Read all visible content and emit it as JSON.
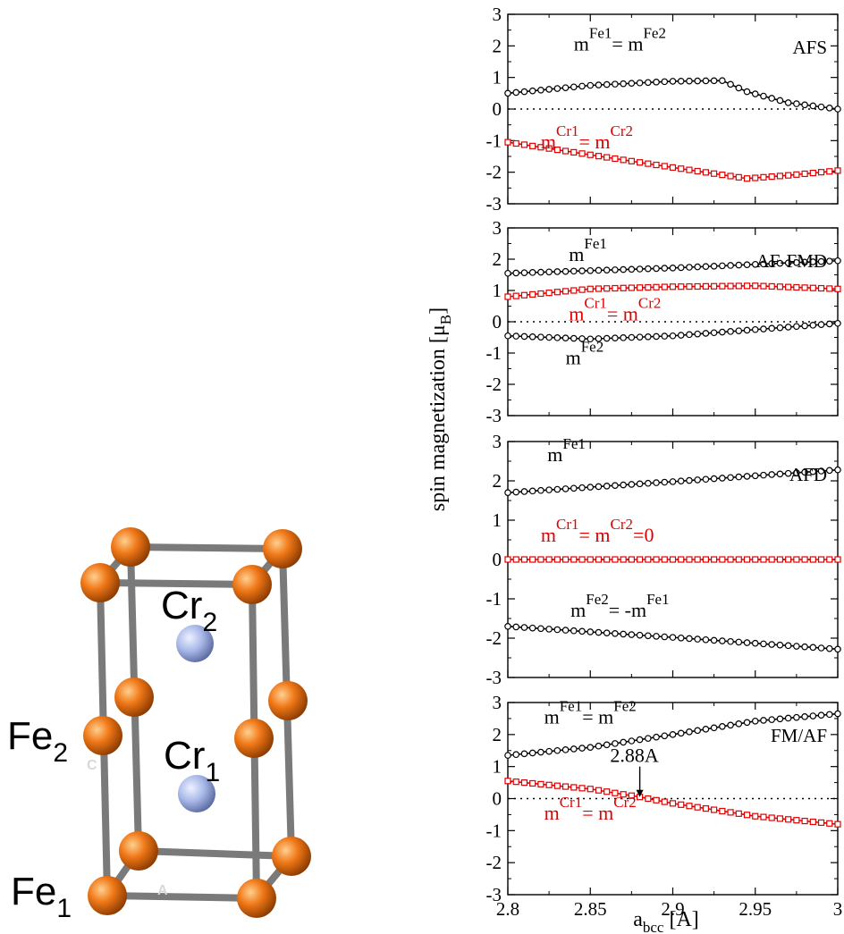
{
  "structure": {
    "labels": [
      {
        "id": "cr2",
        "main": "Cr",
        "sub": "2"
      },
      {
        "id": "cr1",
        "main": "Cr",
        "sub": "1"
      },
      {
        "id": "fe2",
        "main": "Fe",
        "sub": "2"
      },
      {
        "id": "fe1",
        "main": "Fe",
        "sub": "1"
      }
    ],
    "axis_letters": {
      "c": "C",
      "a": "A"
    },
    "colors": {
      "fe": "#f07818",
      "cr": "#a8b8e8",
      "bond": "#7a7a7a"
    }
  },
  "chart_data": {
    "type": "line",
    "ylabel_main": "spin magnetization [μ",
    "ylabel_sub": "B",
    "ylabel_end": "]",
    "xlabel_main": "a",
    "xlabel_sub": "bcc",
    "xlabel_end": " [A]",
    "xlim": [
      2.8,
      3.0
    ],
    "ylim": [
      -3,
      3
    ],
    "xticks": [
      "2.8",
      "2.85",
      "2.9",
      "2.95",
      "3"
    ],
    "yticks": [
      "3",
      "2",
      "1",
      "0",
      "-1",
      "-2",
      "-3"
    ],
    "colors": {
      "fe": "#000000",
      "cr": "#e00000"
    },
    "panels": [
      {
        "title": "AFS",
        "series": [
          {
            "key": "fe",
            "marker": "circle",
            "x": [
              2.8,
              2.85,
              2.9,
              2.93,
              2.945,
              2.97,
              3.0
            ],
            "y": [
              0.5,
              0.75,
              0.88,
              0.9,
              0.55,
              0.2,
              0.0
            ]
          },
          {
            "key": "cr",
            "marker": "square",
            "x": [
              2.8,
              2.85,
              2.9,
              2.945,
              2.97,
              3.0
            ],
            "y": [
              -1.05,
              -1.45,
              -1.85,
              -2.2,
              -2.1,
              -1.95
            ]
          }
        ],
        "annotations": [
          {
            "color": "fe",
            "pos": [
              2.84,
              1.85
            ],
            "parts": [
              [
                "m",
                ""
              ],
              [
                "Fe1",
                "sup"
              ],
              [
                "= m",
                ""
              ],
              [
                "Fe2",
                "sup"
              ]
            ]
          },
          {
            "color": "cr",
            "pos": [
              2.82,
              -1.25
            ],
            "parts": [
              [
                "m",
                ""
              ],
              [
                "Cr1",
                "sup"
              ],
              [
                "= m",
                ""
              ],
              [
                "Cr2",
                "sup"
              ]
            ]
          }
        ]
      },
      {
        "title": "AF-FMD",
        "series": [
          {
            "key": "fe",
            "marker": "circle",
            "x": [
              2.8,
              2.9,
              3.0
            ],
            "y": [
              1.55,
              1.72,
              1.95
            ]
          },
          {
            "key": "cr",
            "marker": "square",
            "x": [
              2.8,
              2.85,
              2.9,
              2.95,
              3.0
            ],
            "y": [
              0.8,
              1.05,
              1.12,
              1.15,
              1.05
            ]
          },
          {
            "key": "fe",
            "marker": "circle",
            "x": [
              2.8,
              2.85,
              2.9,
              2.95,
              3.0
            ],
            "y": [
              -0.45,
              -0.55,
              -0.45,
              -0.25,
              -0.05
            ]
          }
        ],
        "annotations": [
          {
            "color": "fe",
            "pos": [
              2.837,
              1.95
            ],
            "parts": [
              [
                "m",
                ""
              ],
              [
                "Fe1",
                "sup"
              ]
            ]
          },
          {
            "color": "cr",
            "pos": [
              2.837,
              0.05
            ],
            "parts": [
              [
                "m",
                ""
              ],
              [
                "Cr1",
                "sup"
              ],
              [
                "= m",
                ""
              ],
              [
                "Cr2",
                "sup"
              ]
            ]
          },
          {
            "color": "fe",
            "pos": [
              2.835,
              -1.35
            ],
            "parts": [
              [
                "m",
                ""
              ],
              [
                "Fe2",
                "sup"
              ]
            ]
          }
        ]
      },
      {
        "title": "AFD",
        "series": [
          {
            "key": "fe",
            "marker": "circle",
            "x": [
              2.8,
              2.9,
              3.0
            ],
            "y": [
              1.7,
              1.98,
              2.28
            ]
          },
          {
            "key": "cr",
            "marker": "square",
            "x": [
              2.8,
              3.0
            ],
            "y": [
              0.0,
              0.0
            ]
          },
          {
            "key": "fe",
            "marker": "circle",
            "x": [
              2.8,
              2.9,
              3.0
            ],
            "y": [
              -1.7,
              -1.98,
              -2.28
            ]
          }
        ],
        "annotations": [
          {
            "color": "fe",
            "pos": [
              2.824,
              2.5
            ],
            "parts": [
              [
                "m",
                ""
              ],
              [
                "Fe1",
                "sup"
              ]
            ]
          },
          {
            "color": "cr",
            "pos": [
              2.82,
              0.45
            ],
            "parts": [
              [
                "m",
                ""
              ],
              [
                "Cr1",
                "sup"
              ],
              [
                "= m",
                ""
              ],
              [
                "Cr2",
                "sup"
              ],
              [
                "=0",
                ""
              ]
            ]
          },
          {
            "color": "fe",
            "pos": [
              2.838,
              -1.45
            ],
            "parts": [
              [
                "m",
                ""
              ],
              [
                "Fe2",
                "sup"
              ],
              [
                "= -m",
                ""
              ],
              [
                "Fe1",
                "sup"
              ]
            ]
          }
        ]
      },
      {
        "title": "FM/AF",
        "series": [
          {
            "key": "fe",
            "marker": "circle",
            "x": [
              2.8,
              2.85,
              2.9,
              2.95,
              3.0
            ],
            "y": [
              1.35,
              1.6,
              2.0,
              2.42,
              2.65
            ]
          },
          {
            "key": "cr",
            "marker": "square",
            "x": [
              2.8,
              2.85,
              2.88,
              2.9,
              2.95,
              3.0
            ],
            "y": [
              0.55,
              0.3,
              0.05,
              -0.15,
              -0.55,
              -0.8
            ]
          }
        ],
        "annotations": [
          {
            "color": "fe",
            "pos": [
              2.822,
              2.35
            ],
            "parts": [
              [
                "m",
                ""
              ],
              [
                "Fe1",
                "sup"
              ],
              [
                "= m",
                ""
              ],
              [
                "Fe2",
                "sup"
              ]
            ]
          },
          {
            "color": "cr",
            "pos": [
              2.822,
              -0.65
            ],
            "parts": [
              [
                "m",
                ""
              ],
              [
                "Cr1",
                "sup"
              ],
              [
                "= m",
                ""
              ],
              [
                "Cr2",
                "sup"
              ]
            ]
          },
          {
            "color": "fe",
            "pos": [
              2.862,
              1.15
            ],
            "parts": [
              [
                "2.88A",
                ""
              ]
            ]
          }
        ],
        "arrow": {
          "x": 2.88,
          "from_y": 1.0,
          "to_y": 0.05
        }
      }
    ]
  }
}
